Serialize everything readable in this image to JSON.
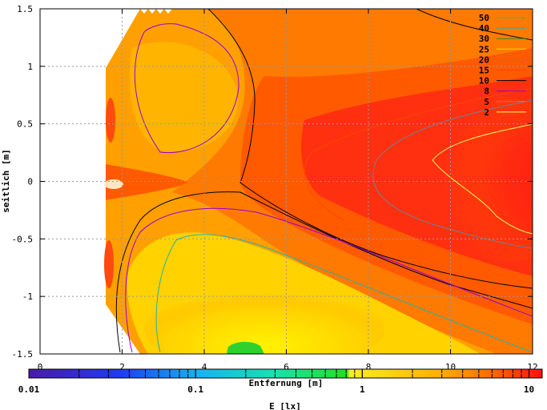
{
  "chart_data": {
    "type": "heatmap",
    "title": "",
    "xlabel": "Entfernung [m]",
    "ylabel": "seitlich [m]",
    "xlim": [
      0,
      12
    ],
    "ylim": [
      -1.5,
      1.5
    ],
    "x_ticks": [
      "0",
      "2",
      "4",
      "6",
      "8",
      "10",
      "12"
    ],
    "y_ticks": [
      "1.5",
      "1",
      "0.5",
      "0",
      "-0.5",
      "-1",
      "-1.5"
    ],
    "grid": true,
    "legend_position": "top-right",
    "legend": [
      {
        "label": "50",
        "color": "#3cb371"
      },
      {
        "label": "40",
        "color": "#20b2aa"
      },
      {
        "label": "30",
        "color": "#228b22"
      },
      {
        "label": "25",
        "color": "#ffd700"
      },
      {
        "label": "20",
        "color": "#708090"
      },
      {
        "label": "15",
        "color": "#ff4500"
      },
      {
        "label": "10",
        "color": "#000000"
      },
      {
        "label": "8",
        "color": "#9400d3"
      },
      {
        "label": "5",
        "color": "#ff6347"
      },
      {
        "label": "2",
        "color": "#ffff66"
      }
    ],
    "colorbar": {
      "label": "E [lx]",
      "scale": "log",
      "range": [
        0.01,
        12
      ],
      "tick_labels": [
        "0.01",
        "0.1",
        "1",
        "10"
      ]
    }
  }
}
